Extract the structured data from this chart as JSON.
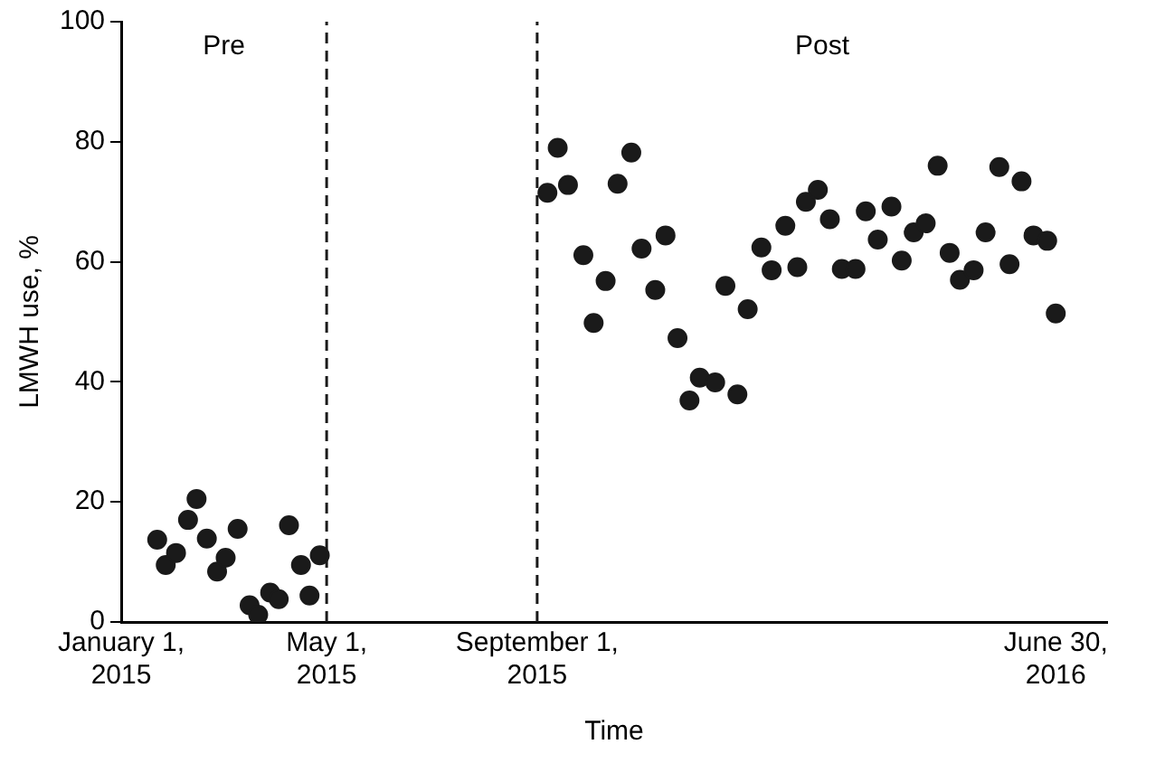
{
  "chart_data": {
    "type": "scatter",
    "xlabel": "Time",
    "ylabel": "LMWH use, %",
    "x": [
      "2015-01-22",
      "2015-01-27",
      "2015-02-02",
      "2015-02-09",
      "2015-02-14",
      "2015-02-20",
      "2015-02-26",
      "2015-03-03",
      "2015-03-10",
      "2015-03-17",
      "2015-03-22",
      "2015-03-29",
      "2015-04-03",
      "2015-04-09",
      "2015-04-16",
      "2015-04-21",
      "2015-04-27",
      "2015-09-07",
      "2015-09-13",
      "2015-09-19",
      "2015-09-28",
      "2015-10-04",
      "2015-10-11",
      "2015-10-18",
      "2015-10-26",
      "2015-11-01",
      "2015-11-09",
      "2015-11-15",
      "2015-11-22",
      "2015-11-29",
      "2015-12-05",
      "2015-12-14",
      "2015-12-20",
      "2015-12-27",
      "2016-01-02",
      "2016-01-10",
      "2016-01-16",
      "2016-01-24",
      "2016-01-31",
      "2016-02-05",
      "2016-02-12",
      "2016-02-19",
      "2016-02-26",
      "2016-03-05",
      "2016-03-11",
      "2016-03-18",
      "2016-03-26",
      "2016-04-01",
      "2016-04-08",
      "2016-04-15",
      "2016-04-22",
      "2016-04-29",
      "2016-05-05",
      "2016-05-13",
      "2016-05-20",
      "2016-05-28",
      "2016-06-03",
      "2016-06-10",
      "2016-06-17",
      "2016-06-25",
      "2016-06-30"
    ],
    "series": [
      {
        "color": "#1a1a1a",
        "values": [
          13.7,
          9.5,
          11.5,
          17,
          20.5,
          13.9,
          8.4,
          10.7,
          15.5,
          2.8,
          1.2,
          4.9,
          3.8,
          16.1,
          9.5,
          4.4,
          11.1,
          71.5,
          79,
          72.8,
          61.1,
          49.8,
          56.8,
          73,
          78.2,
          62.2,
          55.3,
          64.4,
          47.3,
          36.9,
          40.7,
          39.9,
          56,
          37.9,
          52.1,
          62.4,
          58.6,
          66,
          59.1,
          70,
          72,
          67.1,
          58.8,
          58.8,
          68.4,
          63.7,
          69.2,
          60.2,
          64.9,
          66.4,
          76,
          61.5,
          57,
          58.6,
          64.9,
          75.8,
          59.6,
          73.4,
          64.4,
          63.5,
          51.4
        ]
      }
    ],
    "xlim": [
      "2015-01-01",
      "2016-07-30"
    ],
    "xticks": [
      {
        "value": "2015-01-01",
        "label": "January 1,\n2015"
      },
      {
        "value": "2015-05-01",
        "label": "May 1,\n2015"
      },
      {
        "value": "2015-09-01",
        "label": "September 1,\n2015"
      },
      {
        "value": "2016-06-30",
        "label": "June 30,\n2016"
      }
    ],
    "ylim": [
      0,
      100
    ],
    "yticks": [
      0,
      20,
      40,
      60,
      80,
      100
    ],
    "ref_lines": [
      {
        "axis": "x",
        "value": "2015-05-01",
        "color": "#1a1a1a",
        "line_style": "dashed"
      },
      {
        "axis": "x",
        "value": "2015-09-01",
        "color": "#1a1a1a",
        "line_style": "dashed"
      }
    ],
    "annotations": [
      "Pre",
      "Post"
    ],
    "grid": false,
    "legend": false,
    "marker": "circle"
  }
}
